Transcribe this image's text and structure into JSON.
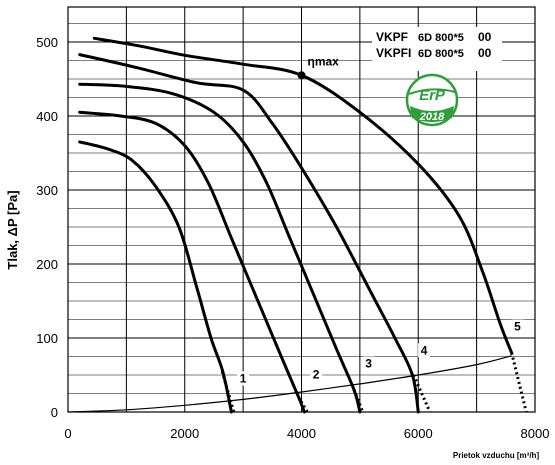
{
  "chart_data": {
    "type": "line",
    "xlabel": "Prietok vzduchu [m³/h]",
    "ylabel": "Tlak, ΔP [Pa]",
    "xlim": [
      0,
      8000
    ],
    "ylim": [
      0,
      540
    ],
    "x_ticks": [
      "0",
      "2000",
      "4000",
      "6000",
      "8000"
    ],
    "y_ticks": [
      "0",
      "100",
      "200",
      "300",
      "400",
      "500"
    ],
    "x_tick_values": [
      0,
      2000,
      4000,
      6000,
      8000
    ],
    "y_tick_values": [
      0,
      100,
      200,
      300,
      400,
      500
    ],
    "grid": true,
    "models": [
      {
        "name": "VKPF",
        "size": "6D 800*5",
        "suffix": "00"
      },
      {
        "name": "VKPFI",
        "size": "6D 800*5",
        "suffix": "00"
      }
    ],
    "annotation": {
      "text": "ηmax",
      "x": 4000,
      "y": 455
    },
    "badge": {
      "top": "ErP",
      "bottom": "2018",
      "color": "#2e9e3a"
    },
    "series": [
      {
        "name": "1",
        "label_at": [
          3000,
          40
        ],
        "points": [
          [
            200,
            365
          ],
          [
            700,
            355
          ],
          [
            1100,
            340
          ],
          [
            1500,
            305
          ],
          [
            1900,
            250
          ],
          [
            2200,
            170
          ],
          [
            2450,
            100
          ],
          [
            2650,
            55
          ],
          [
            2800,
            0
          ]
        ],
        "dotted": [
          [
            2640,
            55
          ],
          [
            2840,
            0
          ]
        ]
      },
      {
        "name": "2",
        "label_at": [
          4250,
          45
        ],
        "points": [
          [
            200,
            405
          ],
          [
            900,
            400
          ],
          [
            1500,
            390
          ],
          [
            2000,
            360
          ],
          [
            2400,
            310
          ],
          [
            2800,
            235
          ],
          [
            3200,
            160
          ],
          [
            3600,
            85
          ],
          [
            3950,
            20
          ],
          [
            4050,
            0
          ]
        ],
        "dotted": [
          [
            3950,
            20
          ],
          [
            4100,
            0
          ]
        ]
      },
      {
        "name": "3",
        "label_at": [
          5150,
          60
        ],
        "points": [
          [
            200,
            443
          ],
          [
            1000,
            440
          ],
          [
            1800,
            430
          ],
          [
            2500,
            405
          ],
          [
            3000,
            365
          ],
          [
            3400,
            310
          ],
          [
            3800,
            235
          ],
          [
            4200,
            160
          ],
          [
            4600,
            85
          ],
          [
            4900,
            30
          ],
          [
            5000,
            0
          ]
        ],
        "dotted": [
          [
            4900,
            30
          ],
          [
            5050,
            0
          ]
        ]
      },
      {
        "name": "4",
        "label_at": [
          6100,
          78
        ],
        "points": [
          [
            200,
            483
          ],
          [
            1200,
            465
          ],
          [
            2200,
            445
          ],
          [
            3000,
            435
          ],
          [
            3500,
            390
          ],
          [
            4000,
            330
          ],
          [
            4600,
            250
          ],
          [
            5200,
            160
          ],
          [
            5600,
            100
          ],
          [
            5900,
            50
          ],
          [
            6000,
            0
          ]
        ],
        "dotted": [
          [
            5920,
            50
          ],
          [
            6200,
            0
          ]
        ]
      },
      {
        "name": "5",
        "label_at": [
          7700,
          110
        ],
        "points": [
          [
            450,
            505
          ],
          [
            1200,
            495
          ],
          [
            2000,
            482
          ],
          [
            3000,
            470
          ],
          [
            4000,
            455
          ],
          [
            5000,
            405
          ],
          [
            6000,
            335
          ],
          [
            6700,
            265
          ],
          [
            7100,
            190
          ],
          [
            7400,
            120
          ],
          [
            7600,
            80
          ]
        ],
        "dotted": [
          [
            7600,
            80
          ],
          [
            7850,
            0
          ]
        ]
      }
    ],
    "system_curve": [
      [
        0,
        0
      ],
      [
        1000,
        3
      ],
      [
        2000,
        9
      ],
      [
        3000,
        17
      ],
      [
        4000,
        27
      ],
      [
        5000,
        38
      ],
      [
        6000,
        50
      ],
      [
        7000,
        64
      ],
      [
        7600,
        76
      ]
    ]
  }
}
